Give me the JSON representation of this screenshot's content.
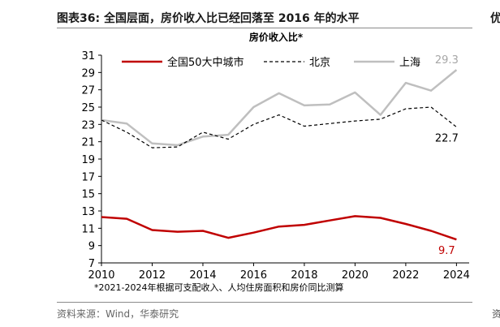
{
  "figure": {
    "title": "图表36:   全国层面，房价收入比已经回落至 2016 年的水平",
    "edge_glyph_top": "优",
    "edge_glyph_bottom": "资",
    "footnote": "*2021-2024年根据可支配收入、人均住房面积和房价同比测算",
    "source": "资料来源：Wind，华泰研究"
  },
  "chart_data": {
    "type": "line",
    "title": "房价收入比*",
    "xlabel": "",
    "ylabel": "",
    "x": [
      2010,
      2011,
      2012,
      2013,
      2014,
      2015,
      2016,
      2017,
      2018,
      2019,
      2020,
      2021,
      2022,
      2023,
      2024
    ],
    "xlim": [
      2010,
      2024.5
    ],
    "ylim": [
      7,
      31
    ],
    "xticks": [
      2010,
      2012,
      2014,
      2016,
      2018,
      2020,
      2022,
      2024
    ],
    "yticks": [
      7,
      9,
      11,
      13,
      15,
      17,
      19,
      21,
      23,
      25,
      27,
      29,
      31
    ],
    "grid": false,
    "legend_position": "top",
    "series": [
      {
        "name": "全国50大中城市",
        "style": "solid",
        "color": "#c00000",
        "values": [
          12.3,
          12.1,
          10.8,
          10.6,
          10.7,
          9.9,
          10.5,
          11.2,
          11.4,
          11.9,
          12.4,
          12.2,
          11.5,
          10.7,
          9.7
        ],
        "end_label": "9.7"
      },
      {
        "name": "北京",
        "style": "dashed",
        "color": "#000000",
        "values": [
          23.5,
          22.1,
          20.3,
          20.4,
          22.1,
          21.3,
          23.0,
          24.1,
          22.8,
          23.1,
          23.4,
          23.6,
          24.8,
          25.0,
          22.7
        ],
        "end_label": "22.7"
      },
      {
        "name": "上海",
        "style": "solid",
        "color": "#bfbfbf",
        "values": [
          23.5,
          23.1,
          20.8,
          20.6,
          21.6,
          21.8,
          25.0,
          26.6,
          25.2,
          25.3,
          26.7,
          24.1,
          27.8,
          26.9,
          29.3
        ],
        "end_label": "29.3"
      }
    ]
  }
}
